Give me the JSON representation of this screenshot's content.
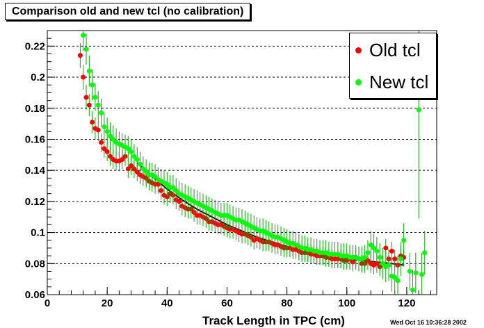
{
  "title": "Comparison old and new tcl (no calibration)",
  "timestamp": "Wed Oct 16 10:36:28 2002",
  "chart_data": {
    "type": "scatter",
    "xlabel": "Track Length in TPC (cm)",
    "ylabel": "",
    "xlim": [
      0,
      130
    ],
    "ylim": [
      0.06,
      0.23
    ],
    "x_ticks": [
      "0",
      "20",
      "40",
      "60",
      "80",
      "100",
      "120"
    ],
    "y_ticks": [
      "0.06",
      "0.08",
      "0.1",
      "0.12",
      "0.14",
      "0.16",
      "0.18",
      "0.2",
      "0.22"
    ],
    "grid": "horizontal dashed",
    "legend_position": "top-right",
    "error_bar_color": "#00aa00",
    "series": [
      {
        "name": "Old tcl",
        "color": "#ff0000",
        "x": [
          11,
          12,
          13,
          14,
          15,
          16,
          17,
          18,
          19,
          20,
          21,
          22,
          23,
          24,
          25,
          26,
          27,
          28,
          29,
          30,
          31,
          32,
          33,
          34,
          35,
          36,
          37,
          38,
          39,
          40,
          41,
          42,
          43,
          44,
          45,
          46,
          47,
          48,
          49,
          50,
          51,
          52,
          53,
          54,
          55,
          56,
          57,
          58,
          59,
          60,
          61,
          62,
          63,
          64,
          65,
          66,
          67,
          68,
          69,
          70,
          71,
          72,
          73,
          74,
          75,
          76,
          77,
          78,
          79,
          80,
          81,
          82,
          83,
          84,
          85,
          86,
          87,
          88,
          89,
          90,
          91,
          92,
          93,
          94,
          95,
          96,
          97,
          98,
          99,
          100,
          101,
          102,
          103,
          104,
          105,
          106,
          107,
          108,
          109,
          110,
          111,
          112,
          113,
          114,
          115,
          116,
          117,
          118,
          119
        ],
        "y": [
          0.214,
          0.2,
          0.187,
          0.182,
          0.171,
          0.167,
          0.166,
          0.158,
          0.154,
          0.152,
          0.149,
          0.147,
          0.146,
          0.146,
          0.147,
          0.149,
          0.141,
          0.143,
          0.141,
          0.139,
          0.137,
          0.136,
          0.135,
          0.133,
          0.132,
          0.131,
          0.131,
          0.127,
          0.124,
          0.123,
          0.125,
          0.124,
          0.121,
          0.12,
          0.117,
          0.116,
          0.115,
          0.115,
          0.113,
          0.111,
          0.111,
          0.11,
          0.109,
          0.107,
          0.107,
          0.106,
          0.105,
          0.105,
          0.104,
          0.103,
          0.102,
          0.102,
          0.101,
          0.1,
          0.099,
          0.099,
          0.098,
          0.097,
          0.095,
          0.096,
          0.095,
          0.094,
          0.094,
          0.094,
          0.093,
          0.092,
          0.092,
          0.091,
          0.09,
          0.09,
          0.09,
          0.089,
          0.089,
          0.088,
          0.087,
          0.087,
          0.087,
          0.086,
          0.086,
          0.085,
          0.085,
          0.085,
          0.084,
          0.084,
          0.083,
          0.083,
          0.083,
          0.083,
          0.082,
          0.082,
          0.083,
          0.081,
          0.084,
          0.083,
          0.08,
          0.08,
          0.082,
          0.08,
          0.079,
          0.08,
          0.078,
          0.08,
          0.09,
          0.083,
          0.088,
          0.083,
          0.079,
          0.085,
          0.084
        ],
        "yerr": [
          0.008,
          0.008,
          0.008,
          0.007,
          0.007,
          0.007,
          0.007,
          0.006,
          0.006,
          0.006,
          0.006,
          0.006,
          0.006,
          0.006,
          0.006,
          0.006,
          0.006,
          0.006,
          0.006,
          0.006,
          0.006,
          0.006,
          0.006,
          0.006,
          0.006,
          0.006,
          0.006,
          0.006,
          0.006,
          0.006,
          0.006,
          0.006,
          0.006,
          0.006,
          0.006,
          0.006,
          0.006,
          0.006,
          0.006,
          0.006,
          0.006,
          0.006,
          0.006,
          0.006,
          0.006,
          0.006,
          0.006,
          0.006,
          0.006,
          0.006,
          0.006,
          0.006,
          0.006,
          0.006,
          0.006,
          0.006,
          0.006,
          0.006,
          0.006,
          0.006,
          0.006,
          0.006,
          0.006,
          0.006,
          0.006,
          0.006,
          0.006,
          0.006,
          0.006,
          0.006,
          0.006,
          0.006,
          0.006,
          0.006,
          0.006,
          0.006,
          0.006,
          0.006,
          0.006,
          0.006,
          0.006,
          0.006,
          0.006,
          0.006,
          0.006,
          0.006,
          0.006,
          0.006,
          0.006,
          0.006,
          0.006,
          0.006,
          0.006,
          0.006,
          0.006,
          0.006,
          0.006,
          0.006,
          0.006,
          0.006,
          0.006,
          0.006,
          0.006,
          0.006,
          0.006,
          0.006,
          0.006,
          0.006,
          0.006
        ]
      },
      {
        "name": "New tcl",
        "color": "#00ff00",
        "x": [
          12,
          13,
          14,
          15,
          16,
          17,
          18,
          19,
          20,
          21,
          22,
          23,
          24,
          25,
          26,
          27,
          28,
          29,
          30,
          31,
          32,
          33,
          34,
          35,
          36,
          37,
          38,
          39,
          40,
          41,
          42,
          43,
          44,
          45,
          46,
          47,
          48,
          49,
          50,
          51,
          52,
          53,
          54,
          55,
          56,
          57,
          58,
          59,
          60,
          61,
          62,
          63,
          64,
          65,
          66,
          67,
          68,
          69,
          70,
          71,
          72,
          73,
          74,
          75,
          76,
          77,
          78,
          79,
          80,
          81,
          82,
          83,
          84,
          85,
          86,
          87,
          88,
          89,
          90,
          91,
          92,
          93,
          94,
          95,
          96,
          97,
          98,
          99,
          100,
          101,
          102,
          103,
          104,
          105,
          106,
          107,
          108,
          109,
          110,
          111,
          112,
          113,
          114,
          115,
          116,
          117,
          118,
          119,
          121,
          122,
          123,
          124,
          125,
          126
        ],
        "y": [
          0.227,
          0.218,
          0.204,
          0.195,
          0.187,
          0.182,
          0.177,
          0.168,
          0.165,
          0.162,
          0.16,
          0.158,
          0.157,
          0.156,
          0.155,
          0.154,
          0.152,
          0.149,
          0.147,
          0.144,
          0.141,
          0.139,
          0.137,
          0.137,
          0.136,
          0.134,
          0.133,
          0.132,
          0.131,
          0.129,
          0.129,
          0.127,
          0.125,
          0.124,
          0.123,
          0.122,
          0.121,
          0.12,
          0.119,
          0.118,
          0.117,
          0.116,
          0.115,
          0.114,
          0.113,
          0.112,
          0.111,
          0.111,
          0.111,
          0.11,
          0.109,
          0.108,
          0.108,
          0.107,
          0.106,
          0.105,
          0.104,
          0.103,
          0.102,
          0.101,
          0.101,
          0.1,
          0.099,
          0.098,
          0.097,
          0.097,
          0.096,
          0.095,
          0.094,
          0.093,
          0.093,
          0.092,
          0.091,
          0.09,
          0.09,
          0.089,
          0.089,
          0.088,
          0.088,
          0.087,
          0.087,
          0.087,
          0.086,
          0.086,
          0.086,
          0.086,
          0.085,
          0.085,
          0.085,
          0.084,
          0.084,
          0.084,
          0.083,
          0.083,
          0.084,
          0.087,
          0.092,
          0.09,
          0.088,
          0.084,
          0.08,
          0.078,
          0.079,
          0.072,
          0.071,
          0.069,
          0.083,
          0.095,
          0.075,
          0.063,
          0.074,
          0.179,
          0.073,
          0.087
        ],
        "yerr": [
          0.01,
          0.01,
          0.01,
          0.01,
          0.009,
          0.009,
          0.009,
          0.009,
          0.009,
          0.009,
          0.009,
          0.009,
          0.008,
          0.008,
          0.008,
          0.008,
          0.008,
          0.008,
          0.008,
          0.008,
          0.008,
          0.008,
          0.008,
          0.008,
          0.008,
          0.008,
          0.008,
          0.008,
          0.008,
          0.008,
          0.008,
          0.008,
          0.008,
          0.008,
          0.008,
          0.008,
          0.008,
          0.008,
          0.008,
          0.008,
          0.008,
          0.008,
          0.008,
          0.008,
          0.008,
          0.008,
          0.008,
          0.008,
          0.008,
          0.008,
          0.008,
          0.008,
          0.008,
          0.008,
          0.008,
          0.008,
          0.008,
          0.008,
          0.008,
          0.008,
          0.008,
          0.008,
          0.008,
          0.008,
          0.008,
          0.008,
          0.008,
          0.008,
          0.008,
          0.008,
          0.008,
          0.008,
          0.008,
          0.008,
          0.008,
          0.008,
          0.008,
          0.008,
          0.008,
          0.008,
          0.008,
          0.008,
          0.008,
          0.008,
          0.008,
          0.008,
          0.008,
          0.008,
          0.008,
          0.008,
          0.008,
          0.008,
          0.008,
          0.008,
          0.008,
          0.008,
          0.009,
          0.009,
          0.009,
          0.009,
          0.01,
          0.01,
          0.01,
          0.01,
          0.011,
          0.011,
          0.011,
          0.011,
          0.012,
          0.013,
          0.013,
          0.07,
          0.014,
          0.014
        ]
      }
    ],
    "fit_curve": {
      "color": "#000000",
      "x": [
        30,
        35,
        40,
        45,
        50,
        55,
        60,
        65,
        70,
        75,
        80,
        85,
        90,
        95,
        100,
        105,
        110,
        115,
        119
      ],
      "y": [
        0.145,
        0.136,
        0.128,
        0.121,
        0.115,
        0.11,
        0.105,
        0.101,
        0.097,
        0.094,
        0.091,
        0.088,
        0.086,
        0.084,
        0.083,
        0.082,
        0.081,
        0.08,
        0.079
      ]
    }
  }
}
